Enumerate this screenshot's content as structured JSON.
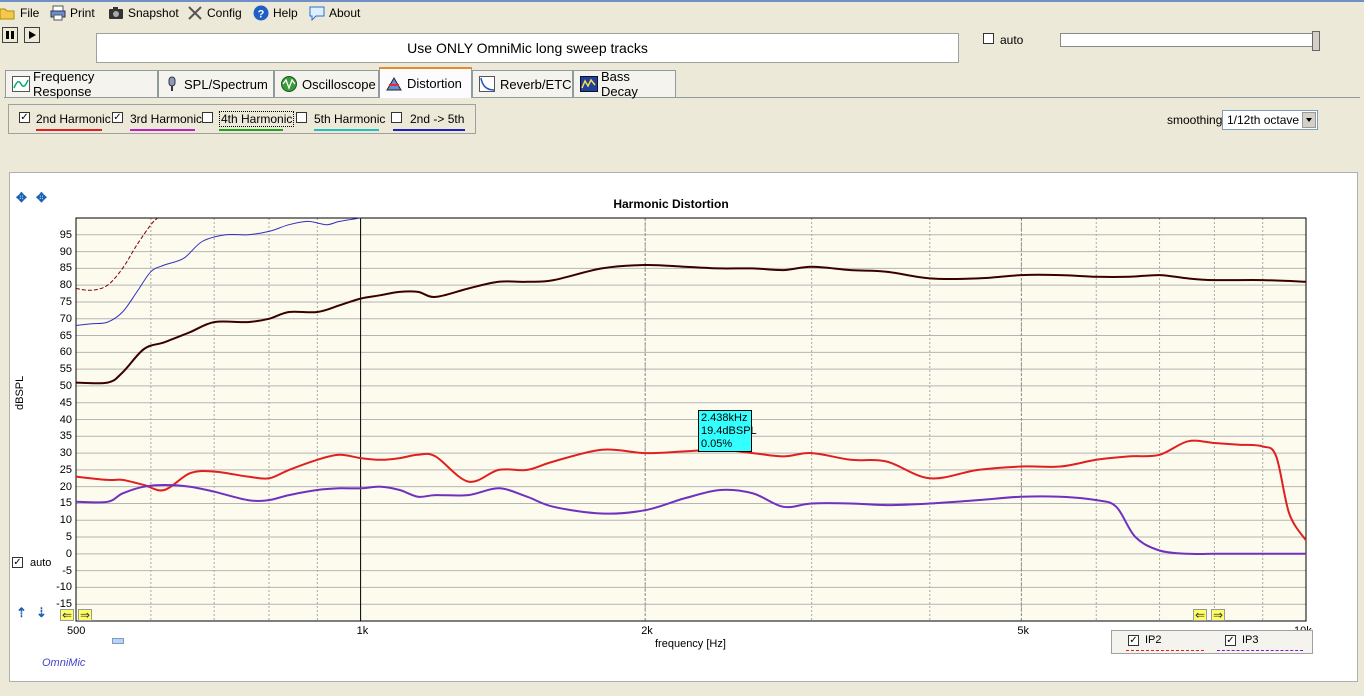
{
  "menu": [
    {
      "label": "File",
      "icon": "folder-icon"
    },
    {
      "label": "Print",
      "icon": "printer-icon"
    },
    {
      "label": "Snapshot",
      "icon": "camera-icon"
    },
    {
      "label": "Config",
      "icon": "tools-icon"
    },
    {
      "label": "Help",
      "icon": "help-icon"
    },
    {
      "label": "About",
      "icon": "chat-icon"
    }
  ],
  "banner": "Use ONLY OmniMic long sweep tracks",
  "auto_top": {
    "label": "auto",
    "checked": false
  },
  "tabs": [
    {
      "label": "Frequency Response",
      "active": false
    },
    {
      "label": "SPL/Spectrum",
      "active": false
    },
    {
      "label": "Oscilloscope",
      "active": false
    },
    {
      "label": "Distortion",
      "active": true
    },
    {
      "label": "Reverb/ETC",
      "active": false
    },
    {
      "label": "Bass Decay",
      "active": false
    }
  ],
  "harmonics": [
    {
      "label": "2nd Harmonic",
      "checked": true,
      "color": "#e02020"
    },
    {
      "label": "3rd Harmonic",
      "checked": true,
      "color": "#c020c0"
    },
    {
      "label": "4th Harmonic",
      "checked": false,
      "color": "#20a020"
    },
    {
      "label": "5th Harmonic",
      "checked": false,
      "color": "#20c0c0"
    },
    {
      "label": "2nd -> 5th",
      "checked": false,
      "color": "#2020c0"
    }
  ],
  "smoothing": {
    "label": "smoothing",
    "value": "1/12th octave"
  },
  "tooltip": {
    "line1": "2.438kHz",
    "line2": "19.4dBSPL",
    "line3": "0.05%"
  },
  "ip": [
    {
      "label": "IP2",
      "checked": true,
      "color": "#e02020"
    },
    {
      "label": "IP3",
      "checked": true,
      "color": "#8020c0"
    }
  ],
  "auto_chart": {
    "label": "auto",
    "checked": true
  },
  "brand": "OmniMic",
  "chart_data": {
    "type": "line",
    "title": "Harmonic Distortion",
    "xlabel": "frequency [Hz]",
    "ylabel": "dBSPL",
    "xscale": "log",
    "xlim": [
      500,
      10000
    ],
    "ylim": [
      -20,
      100
    ],
    "x_ticks": [
      {
        "v": 500,
        "label": "500"
      },
      {
        "v": 1000,
        "label": "1k"
      },
      {
        "v": 2000,
        "label": "2k"
      },
      {
        "v": 5000,
        "label": "5k"
      },
      {
        "v": 10000,
        "label": "10k"
      }
    ],
    "y_ticks": [
      95,
      90,
      85,
      80,
      75,
      70,
      65,
      60,
      55,
      50,
      45,
      40,
      35,
      30,
      25,
      20,
      15,
      10,
      5,
      0,
      -5,
      -10,
      -15
    ],
    "series": [
      {
        "color": "#3a0000",
        "width": 2,
        "dash": "",
        "x": [
          500,
          540,
          560,
          590,
          620,
          660,
          700,
          760,
          800,
          840,
          900,
          950,
          1000,
          1050,
          1100,
          1150,
          1200,
          1300,
          1400,
          1500,
          1600,
          1800,
          2000,
          2200,
          2400,
          2600,
          2800,
          3000,
          3300,
          3600,
          4000,
          4500,
          5000,
          5500,
          6000,
          6500,
          7000,
          7500,
          8000,
          9000,
          10000
        ],
        "y": [
          51,
          51,
          54,
          61,
          63,
          66,
          69,
          69,
          70,
          72,
          72,
          74,
          76,
          77,
          78,
          78,
          76.5,
          79,
          81,
          81,
          81.5,
          85,
          86,
          85.5,
          85,
          85,
          84.5,
          85.5,
          84.5,
          84,
          82,
          82,
          83,
          83,
          82.5,
          82.5,
          83,
          82,
          81.5,
          81.5,
          81
        ]
      },
      {
        "color": "#e02020",
        "width": 2,
        "dash": "",
        "x": [
          500,
          540,
          560,
          590,
          620,
          660,
          700,
          760,
          800,
          840,
          900,
          950,
          1000,
          1050,
          1100,
          1150,
          1200,
          1300,
          1400,
          1500,
          1600,
          1800,
          2000,
          2200,
          2400,
          2600,
          2800,
          3000,
          3300,
          3600,
          4000,
          4500,
          5000,
          5500,
          6000,
          6500,
          7000,
          7500,
          8000,
          8500,
          9000,
          9300,
          9600,
          10000
        ],
        "y": [
          23,
          22,
          22,
          20.5,
          19,
          24,
          24.5,
          23,
          22.5,
          25,
          28,
          29.5,
          28.5,
          28,
          28.5,
          29.5,
          29,
          21.5,
          25,
          25,
          27.5,
          31,
          30,
          30.5,
          31,
          30,
          29,
          30,
          28,
          27.5,
          22.5,
          25,
          26,
          26,
          28,
          29,
          29.5,
          33.5,
          33,
          32.5,
          32,
          29,
          12,
          4
        ]
      },
      {
        "color": "#7030c0",
        "width": 2,
        "dash": "",
        "x": [
          500,
          540,
          560,
          590,
          620,
          660,
          700,
          760,
          800,
          840,
          900,
          950,
          1000,
          1050,
          1100,
          1150,
          1200,
          1300,
          1400,
          1500,
          1600,
          1800,
          2000,
          2200,
          2400,
          2600,
          2800,
          3000,
          3300,
          3600,
          4000,
          4500,
          5000,
          5500,
          6000,
          6300,
          6600,
          7000,
          7500,
          8000,
          9000,
          10000
        ],
        "y": [
          15.5,
          15.5,
          18,
          20,
          20.5,
          20,
          18.5,
          16,
          16,
          17.5,
          19,
          19.5,
          19.5,
          20,
          19,
          17,
          17.5,
          17.5,
          19.5,
          17,
          14,
          12,
          13,
          16.5,
          19,
          18,
          14,
          15,
          15,
          14.5,
          15,
          16,
          17,
          17,
          16,
          14,
          5,
          1,
          0,
          0,
          0,
          0
        ]
      },
      {
        "color": "#3030c0",
        "width": 1,
        "dash": "",
        "x": [
          500,
          520,
          540,
          560,
          580,
          600,
          620,
          650,
          680,
          720,
          760,
          800,
          840,
          880,
          920,
          950,
          1000
        ],
        "y": [
          68,
          68.5,
          69,
          72,
          78,
          84,
          86,
          88,
          93,
          95,
          95,
          96,
          98,
          99,
          98,
          99,
          100
        ]
      },
      {
        "color": "#800000",
        "width": 1,
        "dash": "4,2",
        "x": [
          500,
          520,
          540,
          560,
          580,
          600,
          610
        ],
        "y": [
          79,
          78.5,
          80,
          85,
          92,
          98,
          100
        ]
      }
    ]
  }
}
